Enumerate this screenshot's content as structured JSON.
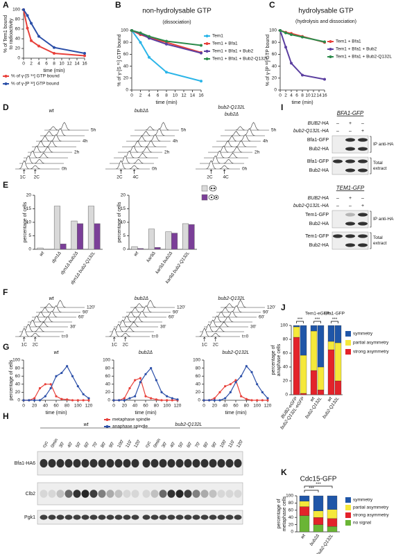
{
  "chart_data": [
    {
      "panel": "A",
      "type": "line",
      "ylabel": [
        "% of Tem1 bound",
        "to radioactivity"
      ],
      "xlabel": "time (min)",
      "x": [
        0,
        1,
        2,
        4,
        8,
        16
      ],
      "xlim": [
        0,
        16
      ],
      "xticks": [
        0,
        2,
        4,
        6,
        8,
        10,
        12,
        14,
        16
      ],
      "ylim": [
        0,
        100
      ],
      "yticks": [
        0,
        20,
        40,
        60,
        80,
        100
      ],
      "series": [
        {
          "name": "% of γ-[S ³⁵] GTP bound",
          "color": "#e8403a",
          "values": [
            100,
            62,
            36,
            25,
            10,
            5
          ]
        },
        {
          "name": "% of γ-[P ³²] GTP bound",
          "color": "#2b4fa8",
          "values": [
            100,
            88,
            72,
            45,
            22,
            10
          ]
        }
      ]
    },
    {
      "panel": "B",
      "type": "line",
      "title": "non-hydrolysable GTP",
      "subtitle": "(dissociation)",
      "ylabel": "% of γ-[S ³⁵] GTP bound",
      "xlabel": "time (min)",
      "x": [
        0,
        2,
        4,
        8,
        16
      ],
      "xlim": [
        0,
        16
      ],
      "xticks": [
        0,
        2,
        4,
        6,
        8,
        10,
        12,
        14,
        16
      ],
      "ylim": [
        0,
        100
      ],
      "yticks": [
        0,
        20,
        40,
        60,
        80,
        100
      ],
      "series": [
        {
          "name": "Tem1",
          "color": "#2bb5e8",
          "values": [
            100,
            80,
            55,
            30,
            15
          ]
        },
        {
          "name": "Tem1 + Bfa1",
          "color": "#e8403a",
          "values": [
            100,
            93,
            88,
            80,
            63
          ]
        },
        {
          "name": "Tem1 + Bfa1 + Bub2",
          "color": "#5b3fa0",
          "values": [
            100,
            95,
            87,
            77,
            62
          ]
        },
        {
          "name": "Tem1 + Bfa1 + Bub2-Q132L",
          "color": "#2a8a4a",
          "values": [
            100,
            96,
            90,
            82,
            75
          ]
        }
      ]
    },
    {
      "panel": "C",
      "type": "line",
      "title": "hydrolysable GTP",
      "subtitle": "(hydrolysis and dissociation)",
      "ylabel": "% of γ-[P ³²] GTP bound",
      "xlabel": "time (min)",
      "x": [
        0,
        2,
        4,
        8,
        16
      ],
      "xlim": [
        0,
        16
      ],
      "xticks": [
        0,
        2,
        4,
        6,
        8,
        10,
        12,
        14,
        16
      ],
      "ylim": [
        0,
        100
      ],
      "yticks": [
        0,
        20,
        40,
        60,
        80,
        100
      ],
      "series": [
        {
          "name": "Tem1 + Bfa1",
          "color": "#e8403a",
          "values": [
            100,
            97,
            95,
            90,
            80
          ]
        },
        {
          "name": "Tem1 + Bfa1 + Bub2",
          "color": "#5b3fa0",
          "values": [
            100,
            72,
            45,
            25,
            18
          ]
        },
        {
          "name": "Tem1 + Bfa1 + Bub2-Q132L",
          "color": "#2a8a4a",
          "values": [
            100,
            96,
            93,
            89,
            81
          ]
        }
      ]
    },
    {
      "panel": "E",
      "type": "bar",
      "ylabel": "percentage of cells",
      "categories": [
        "wt",
        "dyn1Δ",
        "dyn1Δ bub2Δ",
        "dyn1Δ bub2-Q132L"
      ],
      "ylim": [
        0,
        20
      ],
      "yticks": [
        0,
        5,
        10,
        15,
        20
      ],
      "series": [
        {
          "color": "#d9d9d9",
          "values": [
            0.5,
            16,
            10.5,
            16
          ]
        },
        {
          "color": "#7b3f98",
          "values": [
            null,
            2,
            9.5,
            9.5
          ]
        }
      ]
    },
    {
      "type": "bar",
      "ylabel": "percentage of cells",
      "categories": [
        "wt",
        "kar9Δ",
        "kar9Δ bub2Δ",
        "kar9Δ bub2-Q132L"
      ],
      "ylim": [
        0,
        20
      ],
      "yticks": [
        0,
        5,
        10,
        15,
        20
      ],
      "series": [
        {
          "color": "#d9d9d9",
          "values": [
            1,
            7.5,
            6.5,
            9.5
          ]
        },
        {
          "color": "#7b3f98",
          "values": [
            0.3,
            0.7,
            6,
            9.2
          ]
        }
      ]
    },
    {
      "panel": "G",
      "type": "line",
      "title": "wt",
      "ylabel": "percentage of cells",
      "xlabel": "time (min)",
      "x": [
        0,
        10,
        20,
        30,
        40,
        50,
        60,
        70,
        80,
        90,
        100,
        110,
        120
      ],
      "xlim": [
        0,
        120
      ],
      "xticks": [
        0,
        20,
        40,
        60,
        80,
        100,
        120
      ],
      "ylim": [
        0,
        100
      ],
      "yticks": [
        0,
        20,
        40,
        60,
        80,
        100
      ],
      "series": [
        {
          "color": "#e8403a",
          "values": [
            0,
            0,
            5,
            30,
            40,
            40,
            10,
            3,
            2,
            0,
            0,
            0,
            0
          ]
        },
        {
          "color": "#2b4fa8",
          "values": [
            0,
            0,
            0,
            0,
            10,
            30,
            60,
            68,
            85,
            60,
            35,
            15,
            5
          ]
        }
      ]
    },
    {
      "type": "line",
      "title": "bub2Δ",
      "xlabel": "time (min)",
      "x": [
        0,
        10,
        20,
        30,
        40,
        50,
        60,
        70,
        80,
        90,
        100,
        110,
        120
      ],
      "xlim": [
        0,
        120
      ],
      "xticks": [
        0,
        20,
        40,
        60,
        80,
        100,
        120
      ],
      "ylim": [
        0,
        100
      ],
      "yticks": [
        0,
        20,
        40,
        60,
        80,
        100
      ],
      "series": [
        {
          "name": "metaphase spindle",
          "color": "#e8403a",
          "values": [
            0,
            0,
            5,
            30,
            50,
            55,
            10,
            5,
            2,
            0,
            0,
            0,
            0
          ]
        },
        {
          "name": "anaphase spindle",
          "color": "#2b4fa8",
          "values": [
            0,
            0,
            0,
            5,
            10,
            45,
            65,
            80,
            50,
            20,
            10,
            5,
            2
          ]
        }
      ]
    },
    {
      "type": "line",
      "title": "bub2-Q132L",
      "xlabel": "time (min)",
      "x": [
        0,
        10,
        20,
        30,
        40,
        50,
        60,
        70,
        80,
        90,
        100,
        110,
        120
      ],
      "xlim": [
        0,
        120
      ],
      "xticks": [
        0,
        20,
        40,
        60,
        80,
        100,
        120
      ],
      "ylim": [
        0,
        100
      ],
      "yticks": [
        0,
        20,
        40,
        60,
        80,
        100
      ],
      "series": [
        {
          "color": "#e8403a",
          "values": [
            0,
            0,
            5,
            20,
            35,
            40,
            50,
            10,
            3,
            0,
            0,
            0,
            0
          ]
        },
        {
          "color": "#2b4fa8",
          "values": [
            0,
            0,
            0,
            0,
            5,
            20,
            45,
            60,
            85,
            70,
            40,
            20,
            5
          ]
        }
      ]
    },
    {
      "panel": "J",
      "type": "stacked_bar",
      "ylabel": [
        "percentage of",
        "anaphase cells"
      ],
      "categories": [
        "BUB2-eGFP",
        "bub2-Q132L-eGFP",
        "wt",
        "bub2-Q132L",
        "wt",
        "bub2-Q132L"
      ],
      "group_labels": [
        "Tem1-eGFP",
        "Bfa1-GFP"
      ],
      "annotations": [
        "***",
        "***",
        "***"
      ],
      "ylim": [
        0,
        100
      ],
      "yticks": [
        0,
        20,
        40,
        60,
        80,
        100
      ],
      "series": [
        {
          "name": "strong asymmetry",
          "color": "#e3232a",
          "values": [
            83,
            2,
            35,
            7,
            65,
            20
          ]
        },
        {
          "name": "partial asymmetry",
          "color": "#f5e83a",
          "values": [
            15,
            55,
            57,
            33,
            12,
            55
          ]
        },
        {
          "name": "symmetry",
          "color": "#1f56a8",
          "values": [
            2,
            43,
            8,
            60,
            23,
            25
          ]
        }
      ]
    },
    {
      "panel": "K",
      "type": "stacked_bar",
      "title": "Cdc15-GFP",
      "ylabel": [
        "percentage of",
        "metaphase cells"
      ],
      "categories": [
        "wt",
        "bub2Δ",
        "bub2-Q132L"
      ],
      "annotations": [
        "***",
        "***"
      ],
      "ylim": [
        0,
        100
      ],
      "yticks": [
        0,
        20,
        40,
        60,
        80,
        100
      ],
      "series": [
        {
          "name": "no signal",
          "color": "#6ab535",
          "values": [
            45,
            20,
            15
          ]
        },
        {
          "name": "strong asymmetry",
          "color": "#e3232a",
          "values": [
            25,
            20,
            22
          ]
        },
        {
          "name": "partial asymmetry",
          "color": "#f5e83a",
          "values": [
            15,
            18,
            25
          ]
        },
        {
          "name": "symmetry",
          "color": "#1f56a8",
          "values": [
            15,
            42,
            38
          ]
        }
      ]
    }
  ],
  "figure": {
    "D": {
      "panel": "D",
      "subpanels": [
        {
          "title": [
            "wt"
          ],
          "times": [
            "5h",
            "4h",
            "2h",
            "0h"
          ],
          "peaks": [
            "1C",
            "2C"
          ]
        },
        {
          "title": [
            "bub2Δ"
          ],
          "times": [
            "5h",
            "4h",
            "2h",
            "0h"
          ],
          "peaks": [
            "2C",
            "4C"
          ]
        },
        {
          "title": [
            "bub2-Q132L",
            "bub2Δ"
          ],
          "times": [
            "5h",
            "4h",
            "2h",
            "0h"
          ],
          "peaks": [
            "2C",
            "4C"
          ]
        }
      ]
    },
    "F": {
      "panel": "F",
      "subpanels": [
        {
          "title": "wt",
          "times": [
            "120'",
            "90'",
            "60'",
            "30'",
            "t=0"
          ],
          "peaks": [
            "1C",
            "2C"
          ]
        },
        {
          "title": "bub2Δ",
          "times": [
            "120'",
            "90'",
            "60'",
            "30'",
            "t=0"
          ],
          "peaks": [
            "1C",
            "2C"
          ]
        },
        {
          "title": "bub2-Q132L",
          "times": [
            "120'",
            "90'",
            "60'",
            "30'",
            "t=0"
          ],
          "peaks": [
            "1C",
            "2C"
          ]
        }
      ]
    },
    "H": {
      "panel": "H",
      "groups": [
        "wt",
        "bub2-Q132L"
      ],
      "lanes": [
        [
          "cyc",
          "0min",
          "30'",
          "40'",
          "50'",
          "60'",
          "70'",
          "80'",
          "90'",
          "100'",
          "110'",
          "120'"
        ],
        [
          "cyc",
          "0min",
          "30'",
          "40'",
          "50'",
          "60'",
          "70'",
          "80'",
          "90'",
          "100'",
          "110'",
          "120'"
        ]
      ],
      "rows": [
        "Bfa1-HA6",
        "Clb2",
        "Pgk1"
      ]
    },
    "I": {
      "panel": "I",
      "blots": [
        {
          "title": "BFA1-GFP",
          "conditions": [
            {
              "label": "BUB2-HA",
              "signs": [
                "–",
                "+",
                "–"
              ]
            },
            {
              "label": "bub2-Q132L-HA",
              "signs": [
                "–",
                "–",
                "+"
              ]
            }
          ],
          "rows": [
            "Bfa1-GFP",
            "Bub2-HA",
            "Bfa1-GFP",
            "Bub2-HA"
          ],
          "sections": [
            [
              "IP anti-HA"
            ],
            [
              "Total",
              "extract"
            ]
          ]
        },
        {
          "title": "TEM1-GFP",
          "conditions": [
            {
              "label": "BUB2-HA",
              "signs": [
                "–",
                "+",
                "–"
              ]
            },
            {
              "label": "bub2-Q132L-HA",
              "signs": [
                "–",
                "–",
                "+"
              ]
            }
          ],
          "rows": [
            "Tem1-GFP",
            "Bub2-HA",
            "Tem1-GFP",
            "Bub2-HA"
          ],
          "sections": [
            [
              "IP anti-HA"
            ],
            [
              "Total",
              "extract"
            ]
          ]
        }
      ]
    }
  }
}
